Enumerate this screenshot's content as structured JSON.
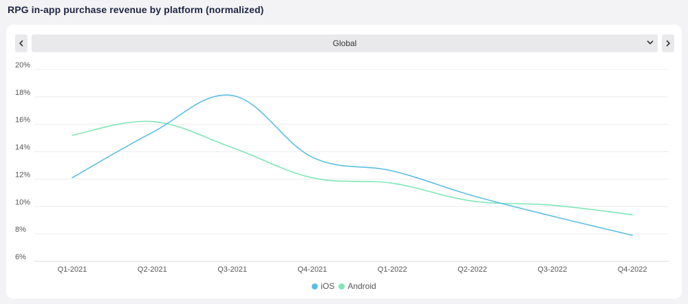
{
  "header": {
    "title": "RPG in-app purchase revenue by platform (normalized)"
  },
  "selector": {
    "value": "Global",
    "prev_icon": "chevron-left-icon",
    "next_icon": "chevron-right-icon",
    "dropdown_icon": "chevron-down-icon"
  },
  "chart_data": {
    "type": "line",
    "title": "RPG in-app purchase revenue by platform (normalized)",
    "xlabel": "",
    "ylabel": "",
    "categories": [
      "Q1-2021",
      "Q2-2021",
      "Q3-2021",
      "Q4-2021",
      "Q1-2022",
      "Q2-2022",
      "Q3-2022",
      "Q4-2022"
    ],
    "y_ticks": [
      "20%",
      "18%",
      "16%",
      "14%",
      "12%",
      "10%",
      "8%",
      "6%"
    ],
    "ylim": [
      6,
      20
    ],
    "grid": true,
    "legend_position": "bottom-center",
    "series": [
      {
        "name": "iOS",
        "color": "#5bbde6",
        "values": [
          12.1,
          15.4,
          18.1,
          13.6,
          12.6,
          10.8,
          9.3,
          7.9
        ]
      },
      {
        "name": "Android",
        "color": "#7fe6b6",
        "values": [
          15.2,
          16.2,
          14.3,
          12.1,
          11.7,
          10.4,
          10.1,
          9.4
        ]
      }
    ]
  }
}
